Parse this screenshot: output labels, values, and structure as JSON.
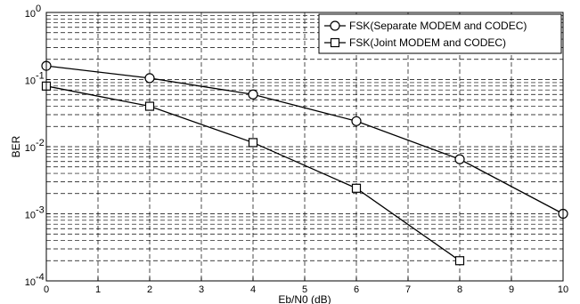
{
  "chart_data": {
    "type": "line",
    "xlabel": "Eb/N0 (dB)",
    "ylabel": "BER",
    "xlim": [
      0,
      10
    ],
    "ylim": [
      0.0001,
      1
    ],
    "y_scale": "log",
    "grid": true,
    "grid_style": "dashed",
    "legend_position": "top-right",
    "x_ticks": [
      "0",
      "1",
      "2",
      "3",
      "4",
      "5",
      "6",
      "7",
      "8",
      "9",
      "10"
    ],
    "y_ticks": [
      {
        "base": "10",
        "exp": "0"
      },
      {
        "base": "10",
        "exp": "-1"
      },
      {
        "base": "10",
        "exp": "-2"
      },
      {
        "base": "10",
        "exp": "-3"
      },
      {
        "base": "10",
        "exp": "-4"
      }
    ],
    "series": [
      {
        "name": "FSK(Separate MODEM and CODEC)",
        "marker": "circle",
        "x": [
          0,
          2,
          4,
          6,
          8,
          10
        ],
        "y": [
          0.16,
          0.105,
          0.06,
          0.024,
          0.0065,
          0.001
        ]
      },
      {
        "name": "FSK(Joint MODEM and CODEC)",
        "marker": "square",
        "x": [
          0,
          2,
          4,
          6,
          8
        ],
        "y": [
          0.08,
          0.04,
          0.0115,
          0.0024,
          0.0002
        ]
      }
    ],
    "line_color": "#000000"
  }
}
